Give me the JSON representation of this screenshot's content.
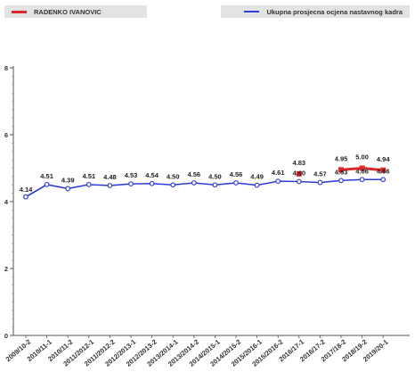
{
  "legend": {
    "items": [
      {
        "label": "RADENKO IVANOVIC",
        "color": "#e0282a"
      },
      {
        "label": "Ukupna prosjecna ocjena nastavnog kadra",
        "color": "#2f3dd6"
      }
    ]
  },
  "chart_data": {
    "type": "line",
    "categories": [
      "2009/10-2",
      "2010/11-1",
      "2010/11-2",
      "2011/2012-1",
      "2011/2012-2",
      "2012/2013-1",
      "2012/2013-2",
      "2013/2014-1",
      "2013/2014-2",
      "2014/2015-1",
      "2014/2015-2",
      "2015/2016-1",
      "2015/2016-2",
      "2016/17-1",
      "2016/17-2",
      "2017/18-2",
      "2018/19-2",
      "2019/20-1"
    ],
    "ylim": [
      0,
      8
    ],
    "yticks": [
      0,
      2,
      4,
      6,
      8
    ],
    "grid": false,
    "legend_position": "top",
    "series": [
      {
        "name": "RADENKO IVANOVIC",
        "color": "#e0282a",
        "values": [
          null,
          null,
          null,
          null,
          null,
          null,
          null,
          null,
          null,
          null,
          null,
          null,
          null,
          4.83,
          null,
          4.95,
          5.0,
          4.94
        ],
        "labels": [
          "",
          "",
          "",
          "",
          "",
          "",
          "",
          "",
          "",
          "",
          "",
          "",
          "",
          "4.83",
          "",
          "4.95",
          "5.00",
          "4.94"
        ]
      },
      {
        "name": "Ukupna prosjecna ocjena nastavnog kadra",
        "color": "#2f3dd6",
        "values": [
          4.14,
          4.51,
          4.39,
          4.51,
          4.48,
          4.53,
          4.54,
          4.5,
          4.56,
          4.5,
          4.56,
          4.49,
          4.61,
          4.6,
          4.57,
          4.63,
          4.66,
          4.66
        ],
        "labels": [
          "4.14",
          "4.51",
          "4.39",
          "4.51",
          "4.48",
          "4.53",
          "4.54",
          "4.50",
          "4.56",
          "4.50",
          "4.56",
          "4.49",
          "4.61",
          "4.60",
          "4.57",
          "4.63",
          "4.66",
          "4.66"
        ]
      }
    ]
  }
}
